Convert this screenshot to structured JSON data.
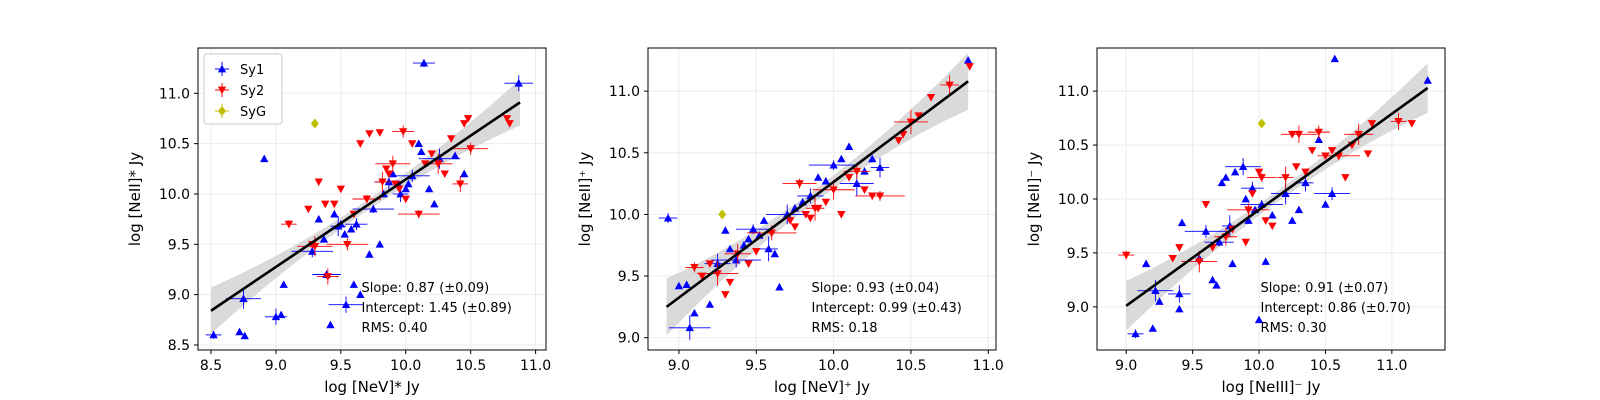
{
  "chart_data": [
    {
      "type": "scatter",
      "xlabel": "log [NeV]* Jy",
      "ylabel": "log [NeII]* Jy",
      "xlim": [
        8.4,
        11.08
      ],
      "ylim": [
        8.45,
        11.45
      ],
      "xticks": [
        "8.5",
        "9.0",
        "9.5",
        "10.0",
        "10.5",
        "11.0"
      ],
      "yticks": [
        "8.5",
        "9.0",
        "9.5",
        "10.0",
        "10.5",
        "11.0"
      ],
      "grid": true,
      "legend": {
        "position": "top-left",
        "entries": [
          "Sy1",
          "Sy2",
          "SyG"
        ]
      },
      "fit": {
        "x": [
          8.5,
          10.88
        ],
        "y": [
          8.84,
          10.91
        ]
      },
      "annotations": [
        "Slope: 0.87 (±0.09)",
        "Intercept: 1.45 (±0.89)",
        "RMS: 0.40"
      ],
      "series": [
        {
          "name": "Sy1",
          "color": "#0000ff",
          "marker": "triangle-up",
          "points": [
            [
              8.52,
              8.6
            ],
            [
              8.72,
              8.63
            ],
            [
              8.76,
              8.59
            ],
            [
              8.75,
              8.96
            ],
            [
              8.91,
              10.35
            ],
            [
              8.97,
              10.79
            ],
            [
              9.0,
              8.78
            ],
            [
              9.04,
              8.8
            ],
            [
              9.06,
              9.1
            ],
            [
              9.28,
              9.43
            ],
            [
              9.33,
              9.75
            ],
            [
              9.37,
              9.55
            ],
            [
              9.39,
              9.2
            ],
            [
              9.42,
              8.7
            ],
            [
              9.45,
              9.8
            ],
            [
              9.48,
              9.68
            ],
            [
              9.5,
              9.7
            ],
            [
              9.53,
              9.6
            ],
            [
              9.54,
              8.9
            ],
            [
              9.58,
              9.65
            ],
            [
              9.6,
              9.1
            ],
            [
              9.62,
              9.7
            ],
            [
              9.65,
              9.0
            ],
            [
              9.72,
              9.4
            ],
            [
              9.75,
              9.85
            ],
            [
              9.8,
              9.5
            ],
            [
              9.83,
              10.0
            ],
            [
              9.87,
              10.12
            ],
            [
              9.9,
              10.2
            ],
            [
              9.94,
              10.1
            ],
            [
              9.96,
              10.0
            ],
            [
              10.0,
              10.05
            ],
            [
              10.02,
              10.1
            ],
            [
              10.05,
              10.18
            ],
            [
              10.1,
              10.5
            ],
            [
              10.12,
              10.42
            ],
            [
              10.14,
              11.3
            ],
            [
              10.18,
              10.05
            ],
            [
              10.22,
              9.9
            ],
            [
              10.26,
              10.35
            ],
            [
              10.38,
              10.38
            ],
            [
              10.45,
              10.2
            ],
            [
              10.87,
              11.1
            ]
          ]
        },
        {
          "name": "Sy2",
          "color": "#ff0000",
          "marker": "triangle-down",
          "points": [
            [
              9.1,
              9.7
            ],
            [
              9.25,
              9.85
            ],
            [
              9.28,
              9.5
            ],
            [
              9.3,
              9.48
            ],
            [
              9.33,
              10.12
            ],
            [
              9.38,
              9.9
            ],
            [
              9.4,
              9.18
            ],
            [
              9.45,
              9.9
            ],
            [
              9.5,
              10.05
            ],
            [
              9.55,
              9.5
            ],
            [
              9.6,
              9.8
            ],
            [
              9.65,
              10.5
            ],
            [
              9.7,
              9.95
            ],
            [
              9.72,
              10.6
            ],
            [
              9.8,
              10.61
            ],
            [
              9.82,
              10.12
            ],
            [
              9.85,
              10.25
            ],
            [
              9.87,
              10.2
            ],
            [
              9.9,
              10.3
            ],
            [
              9.92,
              10.1
            ],
            [
              9.95,
              10.05
            ],
            [
              9.98,
              10.62
            ],
            [
              10.0,
              9.95
            ],
            [
              10.05,
              10.5
            ],
            [
              10.1,
              9.8
            ],
            [
              10.15,
              10.3
            ],
            [
              10.2,
              10.4
            ],
            [
              10.25,
              10.3
            ],
            [
              10.3,
              10.2
            ],
            [
              10.35,
              10.55
            ],
            [
              10.42,
              10.1
            ],
            [
              10.45,
              10.7
            ],
            [
              10.48,
              10.75
            ],
            [
              10.5,
              10.45
            ],
            [
              10.78,
              10.75
            ],
            [
              10.8,
              10.7
            ]
          ]
        },
        {
          "name": "SyG",
          "color": "#bfbf00",
          "marker": "diamond",
          "points": [
            [
              9.3,
              10.7
            ]
          ]
        }
      ]
    },
    {
      "type": "scatter",
      "xlabel": "log [NeV]⁺ Jy",
      "ylabel": "log [NeII]⁺ Jy",
      "xlim": [
        8.8,
        11.05
      ],
      "ylim": [
        8.9,
        11.35
      ],
      "xticks": [
        "9.0",
        "9.5",
        "10.0",
        "10.5",
        "11.0"
      ],
      "yticks": [
        "9.0",
        "9.5",
        "10.0",
        "10.5",
        "11.0"
      ],
      "grid": true,
      "fit": {
        "x": [
          8.92,
          10.87
        ],
        "y": [
          9.25,
          11.08
        ]
      },
      "annotations": [
        "Slope: 0.93 (±0.04)",
        "Intercept: 0.99 (±0.43)",
        "RMS: 0.18"
      ],
      "series": [
        {
          "name": "Sy1",
          "color": "#0000ff",
          "marker": "triangle-up",
          "points": [
            [
              8.93,
              9.97
            ],
            [
              9.0,
              9.42
            ],
            [
              9.05,
              9.43
            ],
            [
              9.07,
              9.08
            ],
            [
              9.1,
              9.2
            ],
            [
              9.2,
              9.27
            ],
            [
              9.25,
              9.6
            ],
            [
              9.3,
              9.87
            ],
            [
              9.33,
              9.72
            ],
            [
              9.37,
              9.63
            ],
            [
              9.42,
              9.75
            ],
            [
              9.45,
              9.8
            ],
            [
              9.48,
              9.88
            ],
            [
              9.52,
              9.83
            ],
            [
              9.55,
              9.95
            ],
            [
              9.58,
              9.72
            ],
            [
              9.62,
              9.68
            ],
            [
              9.65,
              9.41
            ],
            [
              9.7,
              10.0
            ],
            [
              9.75,
              10.05
            ],
            [
              9.8,
              10.1
            ],
            [
              9.85,
              10.15
            ],
            [
              9.9,
              10.3
            ],
            [
              9.95,
              10.27
            ],
            [
              10.0,
              10.4
            ],
            [
              10.05,
              10.45
            ],
            [
              10.1,
              10.55
            ],
            [
              10.15,
              10.25
            ],
            [
              10.2,
              10.35
            ],
            [
              10.25,
              10.45
            ],
            [
              10.3,
              10.38
            ],
            [
              10.87,
              11.25
            ]
          ]
        },
        {
          "name": "Sy2",
          "color": "#ff0000",
          "marker": "triangle-down",
          "points": [
            [
              9.1,
              9.57
            ],
            [
              9.15,
              9.5
            ],
            [
              9.2,
              9.6
            ],
            [
              9.25,
              9.52
            ],
            [
              9.3,
              9.35
            ],
            [
              9.33,
              9.45
            ],
            [
              9.38,
              9.68
            ],
            [
              9.45,
              9.6
            ],
            [
              9.5,
              9.7
            ],
            [
              9.6,
              9.85
            ],
            [
              9.72,
              9.95
            ],
            [
              9.75,
              9.9
            ],
            [
              9.78,
              10.25
            ],
            [
              9.82,
              10.0
            ],
            [
              9.85,
              9.97
            ],
            [
              9.88,
              10.05
            ],
            [
              9.9,
              10.05
            ],
            [
              9.95,
              10.1
            ],
            [
              10.0,
              10.2
            ],
            [
              10.05,
              10.0
            ],
            [
              10.1,
              10.3
            ],
            [
              10.15,
              10.35
            ],
            [
              10.2,
              10.2
            ],
            [
              10.25,
              10.15
            ],
            [
              10.3,
              10.15
            ],
            [
              10.42,
              10.6
            ],
            [
              10.45,
              10.65
            ],
            [
              10.5,
              10.75
            ],
            [
              10.55,
              10.8
            ],
            [
              10.63,
              10.95
            ],
            [
              10.75,
              11.05
            ],
            [
              10.88,
              11.2
            ]
          ]
        },
        {
          "name": "SyG",
          "color": "#bfbf00",
          "marker": "diamond",
          "points": [
            [
              9.28,
              10.0
            ]
          ]
        }
      ]
    },
    {
      "type": "scatter",
      "xlabel": "log [NeIII]⁻ Jy",
      "ylabel": "log [NeII]⁻ Jy",
      "xlim": [
        8.78,
        11.4
      ],
      "ylim": [
        8.6,
        11.4
      ],
      "xticks": [
        "9.0",
        "9.5",
        "10.0",
        "10.5",
        "11.0"
      ],
      "yticks": [
        "9.0",
        "9.5",
        "10.0",
        "10.5",
        "11.0"
      ],
      "grid": true,
      "fit": {
        "x": [
          9.0,
          11.27
        ],
        "y": [
          9.01,
          11.03
        ]
      },
      "annotations": [
        "Slope: 0.91 (±0.07)",
        "Intercept: 0.86 (±0.70)",
        "RMS: 0.30"
      ],
      "series": [
        {
          "name": "Sy1",
          "color": "#0000ff",
          "marker": "triangle-up",
          "points": [
            [
              9.07,
              8.75
            ],
            [
              9.15,
              9.4
            ],
            [
              9.2,
              8.8
            ],
            [
              9.22,
              9.15
            ],
            [
              9.25,
              9.05
            ],
            [
              9.4,
              8.98
            ],
            [
              9.4,
              9.12
            ],
            [
              9.42,
              9.78
            ],
            [
              9.55,
              9.45
            ],
            [
              9.6,
              9.7
            ],
            [
              9.65,
              9.25
            ],
            [
              9.68,
              9.2
            ],
            [
              9.7,
              9.6
            ],
            [
              9.72,
              10.15
            ],
            [
              9.75,
              10.2
            ],
            [
              9.78,
              9.75
            ],
            [
              9.8,
              9.4
            ],
            [
              9.82,
              10.25
            ],
            [
              9.88,
              10.3
            ],
            [
              9.9,
              10.0
            ],
            [
              9.92,
              9.8
            ],
            [
              9.95,
              10.1
            ],
            [
              9.97,
              9.9
            ],
            [
              10.0,
              8.88
            ],
            [
              10.02,
              9.95
            ],
            [
              10.05,
              9.42
            ],
            [
              10.1,
              9.85
            ],
            [
              10.2,
              10.05
            ],
            [
              10.25,
              9.8
            ],
            [
              10.3,
              9.9
            ],
            [
              10.35,
              10.15
            ],
            [
              10.45,
              10.55
            ],
            [
              10.5,
              9.95
            ],
            [
              10.55,
              10.05
            ],
            [
              10.57,
              11.3
            ],
            [
              11.27,
              11.1
            ]
          ]
        },
        {
          "name": "Sy2",
          "color": "#ff0000",
          "marker": "triangle-down",
          "points": [
            [
              9.0,
              9.48
            ],
            [
              9.35,
              9.45
            ],
            [
              9.4,
              9.55
            ],
            [
              9.55,
              9.42
            ],
            [
              9.6,
              9.95
            ],
            [
              9.65,
              9.55
            ],
            [
              9.75,
              9.65
            ],
            [
              9.8,
              9.72
            ],
            [
              9.9,
              9.6
            ],
            [
              9.92,
              9.9
            ],
            [
              9.95,
              10.05
            ],
            [
              10.0,
              10.25
            ],
            [
              10.02,
              10.2
            ],
            [
              10.05,
              9.8
            ],
            [
              10.1,
              9.75
            ],
            [
              10.2,
              10.2
            ],
            [
              10.25,
              10.6
            ],
            [
              10.28,
              10.3
            ],
            [
              10.3,
              10.6
            ],
            [
              10.35,
              10.25
            ],
            [
              10.4,
              10.45
            ],
            [
              10.45,
              10.62
            ],
            [
              10.5,
              10.4
            ],
            [
              10.55,
              10.45
            ],
            [
              10.6,
              10.4
            ],
            [
              10.65,
              10.2
            ],
            [
              10.7,
              10.5
            ],
            [
              10.75,
              10.6
            ],
            [
              10.82,
              10.42
            ],
            [
              10.85,
              10.7
            ],
            [
              11.05,
              10.72
            ],
            [
              11.15,
              10.7
            ]
          ]
        },
        {
          "name": "SyG",
          "color": "#bfbf00",
          "marker": "diamond",
          "points": [
            [
              10.02,
              10.7
            ]
          ]
        }
      ]
    }
  ]
}
